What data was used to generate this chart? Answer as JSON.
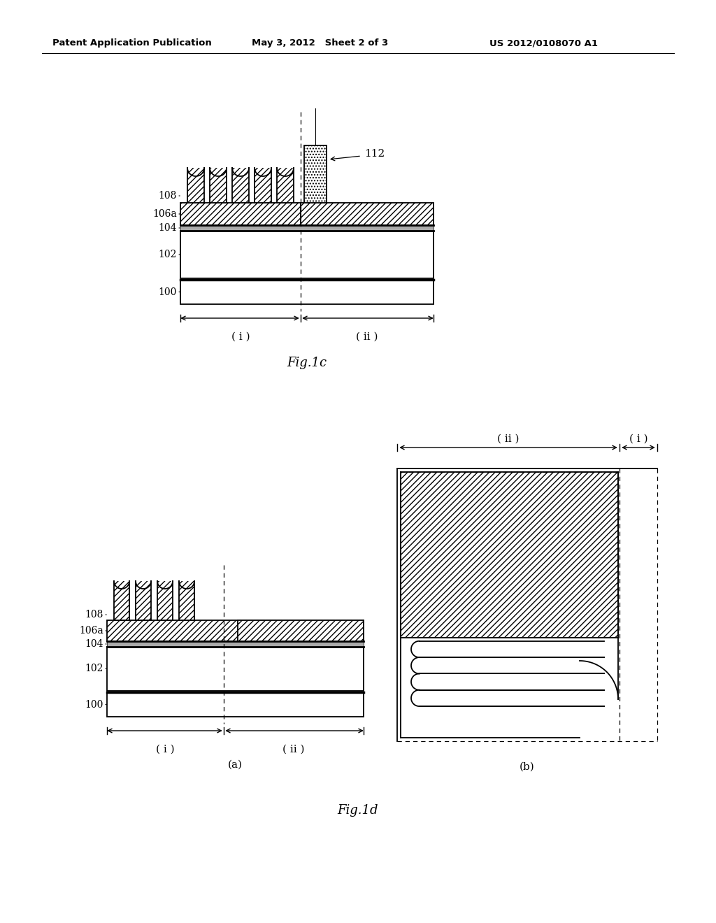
{
  "bg_color": "#ffffff",
  "header_text": "Patent Application Publication",
  "header_date": "May 3, 2012   Sheet 2 of 3",
  "header_patent": "US 2012/0108070 A1",
  "fig1c_label": "Fig.1c",
  "fig1d_label": "Fig.1d",
  "black": "#000000",
  "gray_thin": "#555555"
}
